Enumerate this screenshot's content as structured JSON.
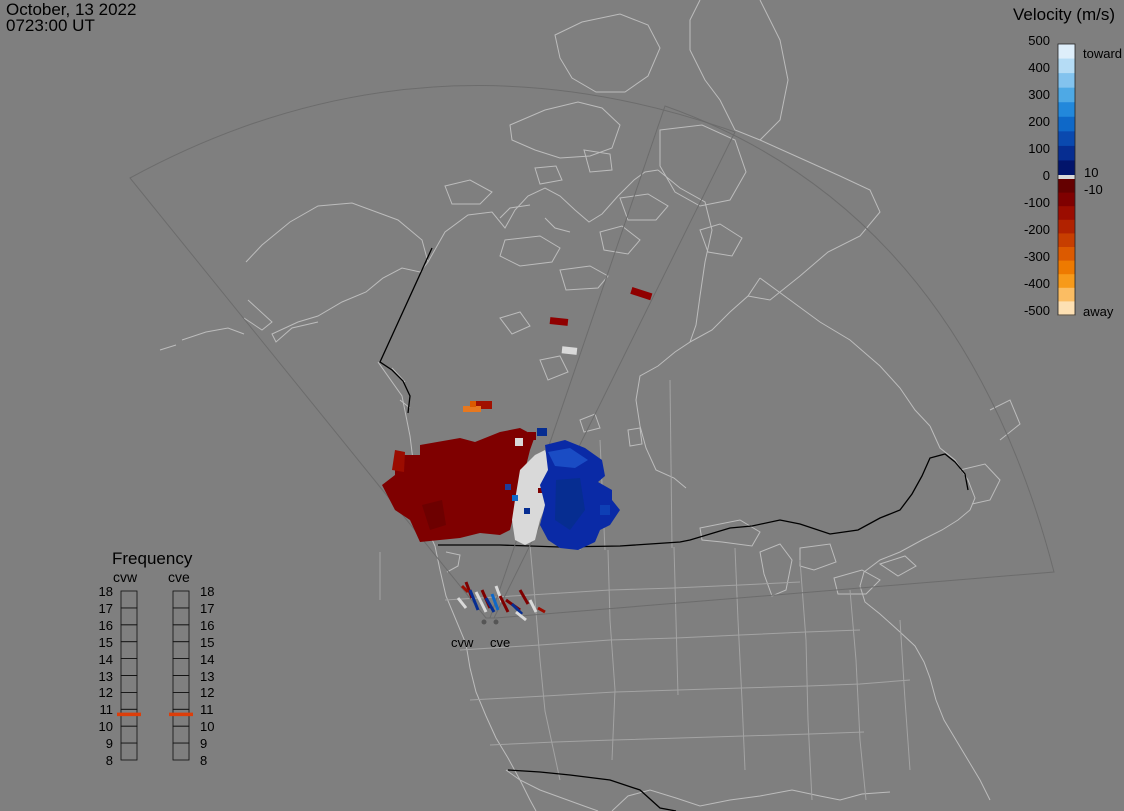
{
  "header": {
    "date": "October, 13 2022",
    "time": "0723:00 UT"
  },
  "velocity_legend": {
    "title": "Velocity (m/s)",
    "ticks": [
      "500",
      "400",
      "300",
      "200",
      "100",
      "0",
      "-100",
      "-200",
      "-300",
      "-400",
      "-500"
    ],
    "toward_label": "toward",
    "away_label": "away",
    "pos_threshold": "10",
    "neg_threshold": "-10",
    "toward_colors": [
      "#deeefa",
      "#b5dcf5",
      "#83c3ee",
      "#4ea9e5",
      "#2288db",
      "#0e68c8",
      "#0a49af",
      "#062d91",
      "#02146b"
    ],
    "away_colors": [
      "#640000",
      "#7f0000",
      "#9b0c00",
      "#b12200",
      "#c73e00",
      "#dc5a00",
      "#ee7a00",
      "#f79a1a",
      "#fbbd63",
      "#fde0b3"
    ],
    "ground_scatter_color": "#d9d9d9"
  },
  "frequency_panel": {
    "title": "Frequency",
    "radars": [
      "cvw",
      "cve"
    ],
    "levels": [
      "18",
      "17",
      "16",
      "15",
      "14",
      "13",
      "12",
      "11",
      "10",
      "9",
      "8"
    ],
    "current_frequency_mhz": [
      10.7,
      10.7
    ],
    "indicator_color": "#dd3e0a"
  },
  "map": {
    "radar_labels": [
      "cvw",
      "cve"
    ],
    "background_color": "#7f7f7f",
    "coastline_color": "#bfbfbf",
    "border_color": "#000000",
    "fov_outline_color": "#6c6c6c"
  }
}
